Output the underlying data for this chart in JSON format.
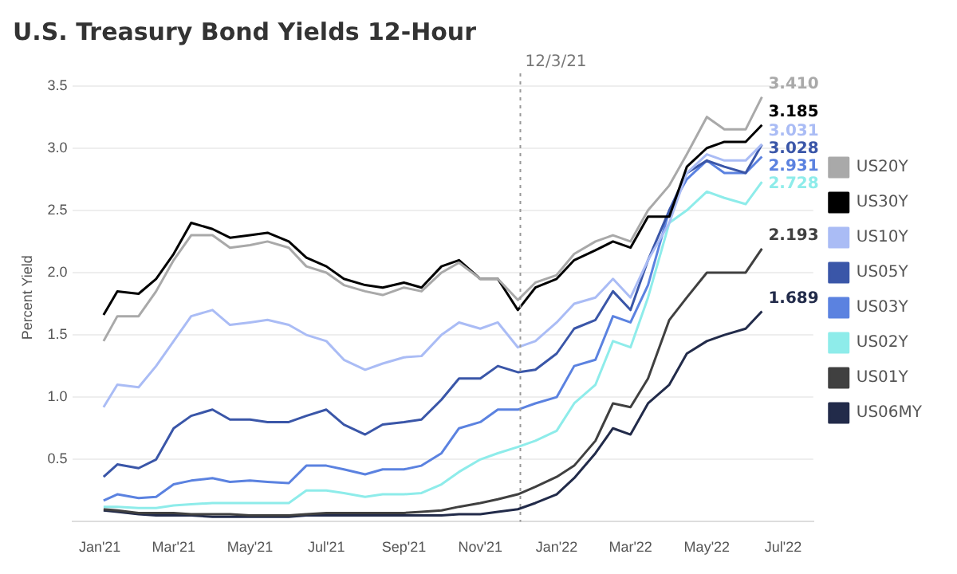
{
  "chart_data": {
    "type": "line",
    "title": "U.S. Treasury Bond Yields 12-Hour",
    "ylabel": "Percent Yield",
    "x": [
      "2021-01-04",
      "2021-01-15",
      "2021-02-01",
      "2021-02-15",
      "2021-03-01",
      "2021-03-15",
      "2021-04-01",
      "2021-04-15",
      "2021-05-01",
      "2021-05-15",
      "2021-06-01",
      "2021-06-15",
      "2021-07-01",
      "2021-07-15",
      "2021-08-01",
      "2021-08-15",
      "2021-09-01",
      "2021-09-15",
      "2021-10-01",
      "2021-10-15",
      "2021-11-01",
      "2021-11-15",
      "2021-12-01",
      "2021-12-15",
      "2022-01-01",
      "2022-01-15",
      "2022-02-01",
      "2022-02-15",
      "2022-03-01",
      "2022-03-15",
      "2022-04-01",
      "2022-04-15",
      "2022-05-01",
      "2022-05-15",
      "2022-06-01",
      "2022-06-14"
    ],
    "series": [
      {
        "name": "US20Y",
        "color": "#a9a9a9",
        "values": [
          1.45,
          1.65,
          1.65,
          1.85,
          2.1,
          2.3,
          2.3,
          2.2,
          2.22,
          2.25,
          2.2,
          2.05,
          2.0,
          1.9,
          1.85,
          1.82,
          1.88,
          1.85,
          2.0,
          2.08,
          1.95,
          1.95,
          1.78,
          1.92,
          1.98,
          2.15,
          2.25,
          2.3,
          2.25,
          2.5,
          2.7,
          2.95,
          3.25,
          3.15,
          3.15,
          3.41
        ]
      },
      {
        "name": "US30Y",
        "color": "#000000",
        "values": [
          1.66,
          1.85,
          1.83,
          1.95,
          2.15,
          2.4,
          2.35,
          2.28,
          2.3,
          2.32,
          2.25,
          2.12,
          2.05,
          1.95,
          1.9,
          1.88,
          1.92,
          1.88,
          2.05,
          2.1,
          1.95,
          1.95,
          1.7,
          1.88,
          1.95,
          2.1,
          2.18,
          2.25,
          2.2,
          2.45,
          2.45,
          2.85,
          3.0,
          3.05,
          3.05,
          3.185
        ]
      },
      {
        "name": "US10Y",
        "color": "#aabcf5",
        "values": [
          0.92,
          1.1,
          1.08,
          1.25,
          1.45,
          1.65,
          1.7,
          1.58,
          1.6,
          1.62,
          1.58,
          1.5,
          1.45,
          1.3,
          1.22,
          1.27,
          1.32,
          1.33,
          1.5,
          1.6,
          1.55,
          1.6,
          1.4,
          1.45,
          1.6,
          1.75,
          1.8,
          1.95,
          1.8,
          2.1,
          2.4,
          2.8,
          2.95,
          2.9,
          2.9,
          3.031
        ]
      },
      {
        "name": "US05Y",
        "color": "#3a56a8",
        "values": [
          0.36,
          0.46,
          0.43,
          0.5,
          0.75,
          0.85,
          0.9,
          0.82,
          0.82,
          0.8,
          0.8,
          0.85,
          0.9,
          0.78,
          0.7,
          0.78,
          0.8,
          0.82,
          0.98,
          1.15,
          1.15,
          1.25,
          1.2,
          1.22,
          1.35,
          1.55,
          1.62,
          1.85,
          1.7,
          2.1,
          2.5,
          2.8,
          2.9,
          2.85,
          2.8,
          3.028
        ]
      },
      {
        "name": "US03Y",
        "color": "#5b82e0",
        "values": [
          0.17,
          0.22,
          0.19,
          0.2,
          0.3,
          0.33,
          0.35,
          0.32,
          0.33,
          0.32,
          0.31,
          0.45,
          0.45,
          0.42,
          0.38,
          0.42,
          0.42,
          0.45,
          0.55,
          0.75,
          0.8,
          0.9,
          0.9,
          0.95,
          1.0,
          1.25,
          1.3,
          1.65,
          1.6,
          1.9,
          2.5,
          2.75,
          2.9,
          2.8,
          2.8,
          2.931
        ]
      },
      {
        "name": "US02Y",
        "color": "#8eecea",
        "values": [
          0.12,
          0.12,
          0.11,
          0.11,
          0.13,
          0.14,
          0.15,
          0.15,
          0.15,
          0.15,
          0.15,
          0.25,
          0.25,
          0.23,
          0.2,
          0.22,
          0.22,
          0.23,
          0.3,
          0.4,
          0.5,
          0.55,
          0.6,
          0.65,
          0.73,
          0.95,
          1.1,
          1.45,
          1.4,
          1.8,
          2.4,
          2.5,
          2.65,
          2.6,
          2.55,
          2.728
        ]
      },
      {
        "name": "US01Y",
        "color": "#404040",
        "values": [
          0.1,
          0.09,
          0.07,
          0.07,
          0.07,
          0.06,
          0.06,
          0.06,
          0.05,
          0.05,
          0.05,
          0.06,
          0.07,
          0.07,
          0.07,
          0.07,
          0.07,
          0.08,
          0.09,
          0.12,
          0.15,
          0.18,
          0.22,
          0.28,
          0.36,
          0.45,
          0.65,
          0.95,
          0.92,
          1.15,
          1.62,
          1.8,
          2.0,
          2.0,
          2.0,
          2.193
        ]
      },
      {
        "name": "US06MY",
        "color": "#222b4a",
        "values": [
          0.09,
          0.08,
          0.06,
          0.05,
          0.05,
          0.05,
          0.04,
          0.04,
          0.04,
          0.04,
          0.04,
          0.05,
          0.05,
          0.05,
          0.05,
          0.05,
          0.05,
          0.05,
          0.05,
          0.06,
          0.06,
          0.08,
          0.1,
          0.15,
          0.22,
          0.35,
          0.55,
          0.75,
          0.7,
          0.95,
          1.1,
          1.35,
          1.45,
          1.5,
          1.55,
          1.689
        ]
      }
    ],
    "xlim": [
      "2020-12-10",
      "2022-07-25"
    ],
    "xticks": [
      {
        "value": "2021-01-01",
        "label": "Jan'21"
      },
      {
        "value": "2021-03-01",
        "label": "Mar'21"
      },
      {
        "value": "2021-05-01",
        "label": "May'21"
      },
      {
        "value": "2021-07-01",
        "label": "Jul'21"
      },
      {
        "value": "2021-09-01",
        "label": "Sep'21"
      },
      {
        "value": "2021-11-01",
        "label": "Nov'21"
      },
      {
        "value": "2022-01-01",
        "label": "Jan'22"
      },
      {
        "value": "2022-03-01",
        "label": "Mar'22"
      },
      {
        "value": "2022-05-01",
        "label": "May'22"
      },
      {
        "value": "2022-07-01",
        "label": "Jul'22"
      }
    ],
    "ylim": [
      0,
      3.6
    ],
    "yticks": [
      {
        "value": 0.5,
        "label": "0.5"
      },
      {
        "value": 1,
        "label": "1.0"
      },
      {
        "value": 1.5,
        "label": "1.5"
      },
      {
        "value": 2,
        "label": "2.0"
      },
      {
        "value": 2.5,
        "label": "2.5"
      },
      {
        "value": 3,
        "label": "3.0"
      },
      {
        "value": 3.5,
        "label": "3.5"
      }
    ],
    "ref_lines": [
      {
        "axis": "x",
        "value": "2021-12-03",
        "label": "12/3/21",
        "color": "#999999",
        "line_style": "dotted"
      }
    ],
    "annotations": [
      {
        "text": "3.410",
        "x": "2022-06-14",
        "y": 3.41
      },
      {
        "text": "3.185",
        "x": "2022-06-14",
        "y": 3.185
      },
      {
        "text": "3.031",
        "x": "2022-06-14",
        "y": 3.031
      },
      {
        "text": "3.028",
        "x": "2022-06-14",
        "y": 3.028
      },
      {
        "text": "2.931",
        "x": "2022-06-14",
        "y": 2.931
      },
      {
        "text": "2.728",
        "x": "2022-06-14",
        "y": 2.728
      },
      {
        "text": "2.193",
        "x": "2022-06-14",
        "y": 2.193
      },
      {
        "text": "1.689",
        "x": "2022-06-14",
        "y": 1.689
      }
    ],
    "grid": "y",
    "legend": "right",
    "marker": "none",
    "line_style": "solid"
  }
}
